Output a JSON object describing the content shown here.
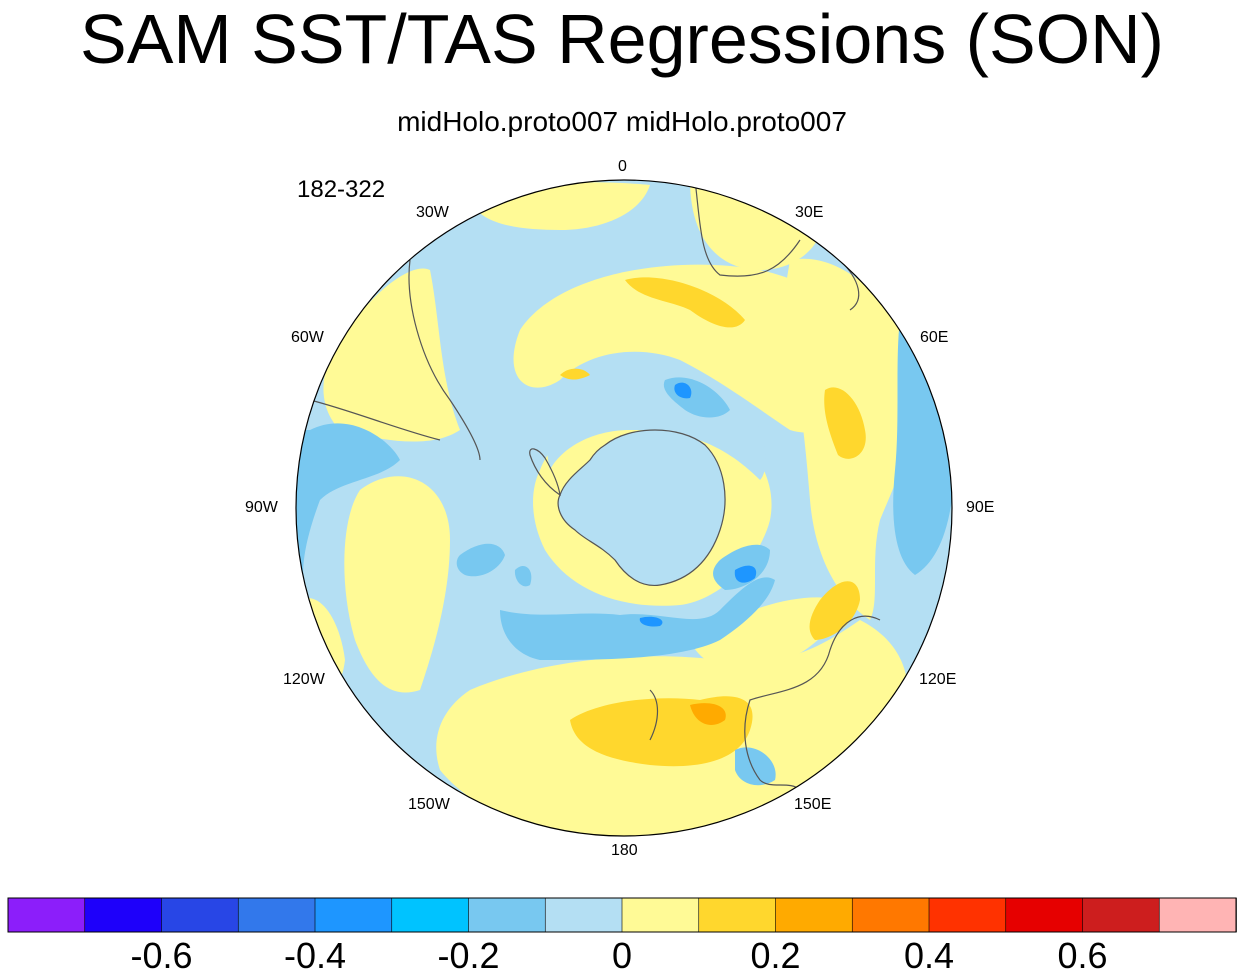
{
  "title": "SAM SST/TAS Regressions (SON)",
  "subtitle": "midHolo.proto007  midHolo.proto007",
  "period": "182-322",
  "map": {
    "projection": "south-polar-stereographic",
    "longitude_labels": [
      "0",
      "30E",
      "60E",
      "90E",
      "120E",
      "150E",
      "180",
      "150W",
      "120W",
      "90W",
      "60W",
      "30W"
    ],
    "land_fill": "#b4dff3"
  },
  "colorbar": {
    "colors": [
      "#8c1efa",
      "#1e00fa",
      "#2846e6",
      "#3278eb",
      "#1e96ff",
      "#00c3ff",
      "#78c8f0",
      "#b4dff3",
      "#fffa96",
      "#ffd72d",
      "#ffaa00",
      "#ff7800",
      "#ff3200",
      "#e60000",
      "#cd1e1e",
      "#ffb4b4"
    ],
    "tick_labels": [
      "-0.6",
      "-0.4",
      "-0.2",
      "0",
      "0.2",
      "0.4",
      "0.6"
    ]
  }
}
